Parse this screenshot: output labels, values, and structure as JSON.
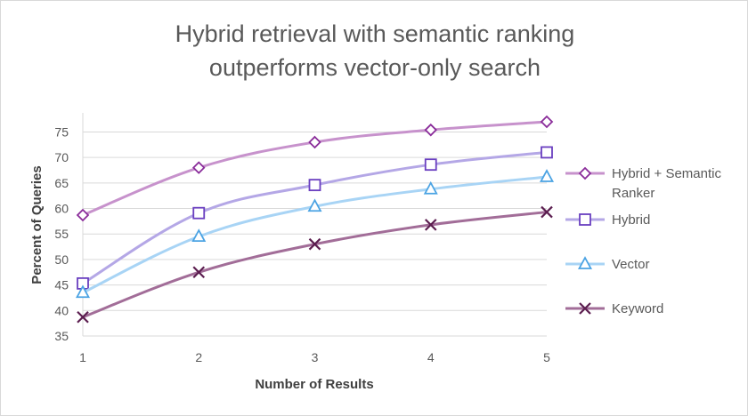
{
  "chart_data": {
    "type": "line",
    "title_lines": [
      "Hybrid retrieval with semantic ranking",
      "outperforms vector-only search"
    ],
    "xlabel": "Number of Results",
    "ylabel": "Percent of Queries",
    "categories": [
      "1",
      "2",
      "3",
      "4",
      "5"
    ],
    "x": [
      1,
      2,
      3,
      4,
      5
    ],
    "ylim": [
      35,
      77
    ],
    "yticks": [
      35,
      40,
      45,
      50,
      55,
      60,
      65,
      70,
      75
    ],
    "grid": "horizontal",
    "legend_position": "right",
    "smooth": true,
    "series": [
      {
        "name": "Hybrid + Semantic Ranker",
        "name_lines": [
          "Hybrid + Semantic",
          "Ranker"
        ],
        "values": [
          58.7,
          68.0,
          73.0,
          75.4,
          77.0
        ],
        "line_color": "#c792cc",
        "marker_color": "#8a2c9a",
        "marker": "diamond"
      },
      {
        "name": "Hybrid",
        "name_lines": [
          "Hybrid"
        ],
        "values": [
          45.3,
          59.1,
          64.6,
          68.6,
          71.0
        ],
        "line_color": "#b4a7e6",
        "marker_color": "#6a3fc0",
        "marker": "square"
      },
      {
        "name": "Vector",
        "name_lines": [
          "Vector"
        ],
        "values": [
          43.5,
          54.5,
          60.4,
          63.8,
          66.2
        ],
        "line_color": "#a8d4f5",
        "marker_color": "#4ba3e3",
        "marker": "triangle"
      },
      {
        "name": "Keyword",
        "name_lines": [
          "Keyword"
        ],
        "values": [
          38.7,
          47.5,
          53.0,
          56.8,
          59.3
        ],
        "line_color": "#a26d98",
        "marker_color": "#5b1d4f",
        "marker": "x"
      }
    ]
  }
}
